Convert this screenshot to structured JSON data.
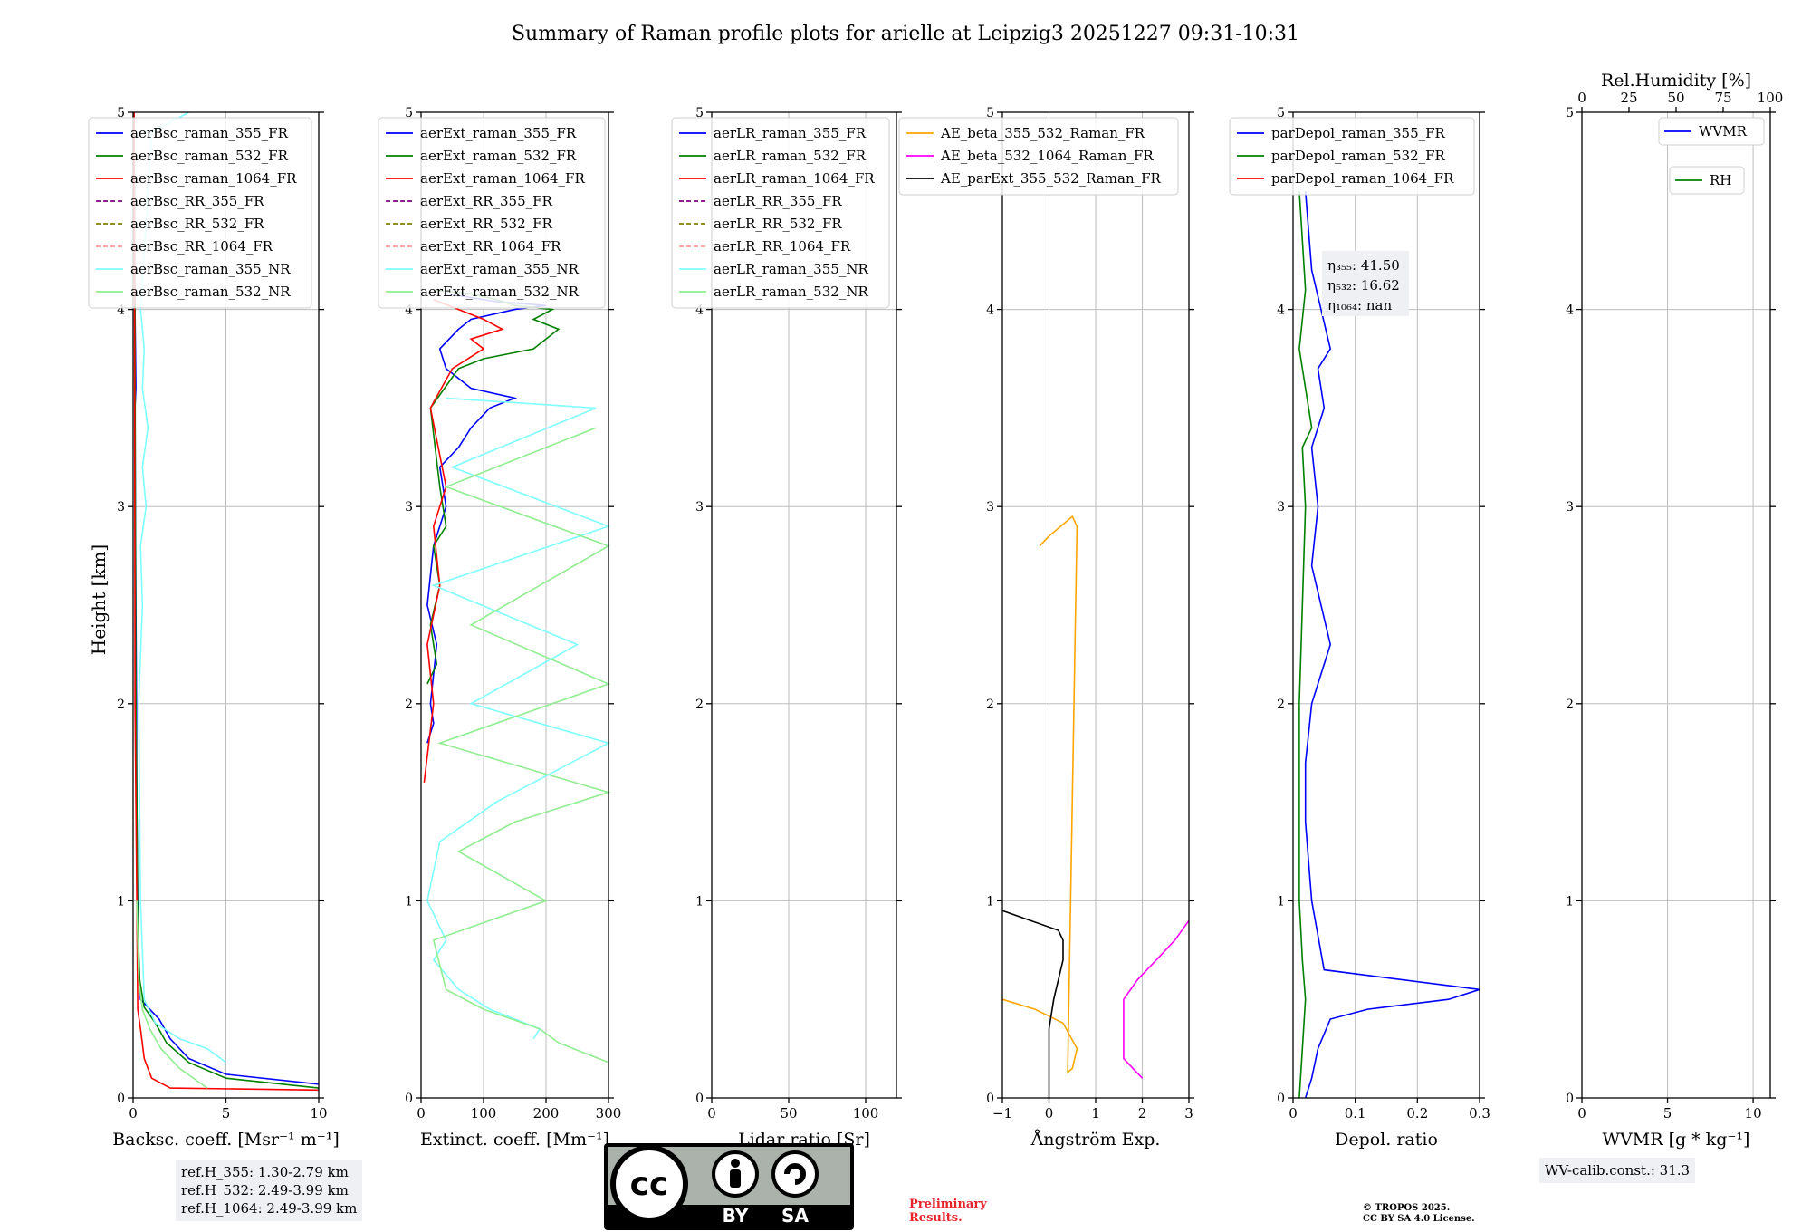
{
  "title": "Summary of Raman profile plots for arielle at Leipzig3 20251227 09:31-10:31",
  "ylabel": "Height [km]",
  "chart_data": [
    {
      "type": "line",
      "panel": "backscatter",
      "xlabel": "Backsc. coeff. [Msr⁻¹ m⁻¹]",
      "xlim": [
        0,
        10
      ],
      "ylim": [
        0,
        5
      ],
      "xticks": [
        0,
        5,
        10
      ],
      "yticks": [
        0,
        1,
        2,
        3,
        4,
        5
      ],
      "legend_position": "top",
      "series": [
        {
          "name": "aerBsc_raman_355_FR",
          "color": "#0000ff",
          "style": "solid",
          "x": [
            10.0,
            5.0,
            3.0,
            2.0,
            1.4,
            0.8,
            0.4,
            0.3,
            0.25,
            0.2,
            0.18,
            0.12,
            0.1,
            0.15,
            0.1,
            0.05
          ],
          "y": [
            0.07,
            0.12,
            0.2,
            0.3,
            0.4,
            0.46,
            0.5,
            0.7,
            1.0,
            1.5,
            2.0,
            3.0,
            3.5,
            3.6,
            4.0,
            5.0
          ]
        },
        {
          "name": "aerBsc_raman_532_FR",
          "color": "#008000",
          "style": "solid",
          "x": [
            10.0,
            5.0,
            3.0,
            1.8,
            1.2,
            0.6,
            0.35,
            0.25,
            0.2,
            0.15,
            0.12,
            0.1,
            0.05
          ],
          "y": [
            0.05,
            0.1,
            0.18,
            0.28,
            0.38,
            0.46,
            0.6,
            0.9,
            1.5,
            2.0,
            3.0,
            4.0,
            5.0
          ]
        },
        {
          "name": "aerBsc_raman_1064_FR",
          "color": "#ff0000",
          "style": "solid",
          "x": [
            10.0,
            2.0,
            1.0,
            0.6,
            0.4,
            0.25,
            0.2,
            0.1,
            0.08,
            0.05
          ],
          "y": [
            0.04,
            0.05,
            0.1,
            0.2,
            0.35,
            0.45,
            1.0,
            2.0,
            4.0,
            5.0
          ]
        },
        {
          "name": "aerBsc_RR_355_FR",
          "color": "#800080",
          "style": "dashed",
          "x": [],
          "y": []
        },
        {
          "name": "aerBsc_RR_532_FR",
          "color": "#808000",
          "style": "dashed",
          "x": [],
          "y": []
        },
        {
          "name": "aerBsc_RR_1064_FR",
          "color": "#ff9a9a",
          "style": "dashed",
          "x": [],
          "y": []
        },
        {
          "name": "aerBsc_raman_355_NR",
          "color": "#7fffff",
          "style": "solid",
          "x": [
            5.0,
            4.0,
            2.5,
            1.2,
            0.6,
            0.4,
            0.3,
            0.5,
            0.4,
            0.7,
            0.5,
            0.8,
            0.5,
            0.6,
            0.4,
            1.0,
            2.0,
            3.0
          ],
          "y": [
            0.18,
            0.25,
            0.3,
            0.38,
            0.5,
            1.0,
            2.0,
            2.5,
            2.8,
            3.0,
            3.2,
            3.4,
            3.6,
            3.8,
            4.0,
            4.9,
            4.95,
            5.0
          ]
        },
        {
          "name": "aerBsc_raman_532_NR",
          "color": "#90ee90",
          "style": "solid",
          "x": [
            4.0,
            2.5,
            1.5,
            0.9,
            0.5,
            0.3,
            0.2
          ],
          "y": [
            0.05,
            0.15,
            0.25,
            0.35,
            0.45,
            0.6,
            1.0
          ]
        }
      ]
    },
    {
      "type": "line",
      "panel": "extinction",
      "xlabel": "Extinct. coeff. [Mm⁻¹]",
      "xlim": [
        0,
        300
      ],
      "ylim": [
        0,
        5
      ],
      "xticks": [
        0,
        100,
        200,
        300
      ],
      "yticks": [
        0,
        1,
        2,
        3,
        4,
        5
      ],
      "legend_position": "top",
      "series": [
        {
          "name": "aerExt_raman_355_FR",
          "color": "#0000ff",
          "style": "solid",
          "x": [
            10,
            20,
            15,
            25,
            10,
            20,
            40,
            30,
            60,
            80,
            110,
            150,
            80,
            40,
            30,
            60,
            80,
            150,
            200,
            120,
            80,
            40
          ],
          "y": [
            1.8,
            1.9,
            2.0,
            2.3,
            2.5,
            2.8,
            3.0,
            3.2,
            3.3,
            3.4,
            3.5,
            3.55,
            3.6,
            3.7,
            3.8,
            3.9,
            3.95,
            4.0,
            4.02,
            4.04,
            4.06,
            4.08
          ]
        },
        {
          "name": "aerExt_raman_532_FR",
          "color": "#008000",
          "style": "solid",
          "x": [
            10,
            25,
            15,
            30,
            20,
            40,
            30,
            15,
            60,
            100,
            180,
            220,
            180,
            210,
            150,
            120,
            80,
            20
          ],
          "y": [
            2.1,
            2.2,
            2.4,
            2.6,
            2.8,
            2.9,
            3.1,
            3.5,
            3.7,
            3.75,
            3.8,
            3.9,
            3.95,
            4.0,
            4.02,
            4.05,
            4.08,
            4.1
          ]
        },
        {
          "name": "aerExt_raman_1064_FR",
          "color": "#ff0000",
          "style": "solid",
          "x": [
            5,
            20,
            10,
            30,
            20,
            40,
            15,
            50,
            100,
            80,
            130,
            100,
            60,
            20
          ],
          "y": [
            1.6,
            2.0,
            2.3,
            2.6,
            2.9,
            3.1,
            3.5,
            3.7,
            3.8,
            3.85,
            3.9,
            3.95,
            4.0,
            4.05
          ]
        },
        {
          "name": "aerExt_RR_355_FR",
          "color": "#800080",
          "style": "dashed",
          "x": [],
          "y": []
        },
        {
          "name": "aerExt_RR_532_FR",
          "color": "#808000",
          "style": "dashed",
          "x": [],
          "y": []
        },
        {
          "name": "aerExt_RR_1064_FR",
          "color": "#ff9a9a",
          "style": "dashed",
          "x": [],
          "y": []
        },
        {
          "name": "aerExt_raman_355_NR",
          "color": "#7fffff",
          "style": "solid",
          "x": [
            180,
            190,
            110,
            60,
            20,
            40,
            10,
            30,
            120,
            300,
            80,
            250,
            20,
            300,
            50,
            280,
            40
          ],
          "y": [
            0.3,
            0.35,
            0.45,
            0.55,
            0.7,
            0.8,
            1.0,
            1.3,
            1.5,
            1.8,
            2.0,
            2.3,
            2.6,
            2.9,
            3.2,
            3.5,
            3.55
          ]
        },
        {
          "name": "aerExt_raman_532_NR",
          "color": "#90ee90",
          "style": "solid",
          "x": [
            300,
            220,
            190,
            100,
            40,
            20,
            200,
            60,
            150,
            300,
            30,
            300,
            80,
            300,
            40,
            280
          ],
          "y": [
            0.18,
            0.28,
            0.35,
            0.45,
            0.55,
            0.8,
            1.0,
            1.25,
            1.4,
            1.55,
            1.8,
            2.1,
            2.4,
            2.8,
            3.1,
            3.4
          ]
        }
      ]
    },
    {
      "type": "line",
      "panel": "lidar_ratio",
      "xlabel": "Lidar ratio [Sr]",
      "xlim": [
        0,
        120
      ],
      "ylim": [
        0,
        5
      ],
      "xticks": [
        0,
        50,
        100
      ],
      "yticks": [
        0,
        1,
        2,
        3,
        4,
        5
      ],
      "legend_position": "top",
      "series": [
        {
          "name": "aerLR_raman_355_FR",
          "color": "#0000ff",
          "style": "solid",
          "x": [],
          "y": []
        },
        {
          "name": "aerLR_raman_532_FR",
          "color": "#008000",
          "style": "solid",
          "x": [],
          "y": []
        },
        {
          "name": "aerLR_raman_1064_FR",
          "color": "#ff0000",
          "style": "solid",
          "x": [],
          "y": []
        },
        {
          "name": "aerLR_RR_355_FR",
          "color": "#800080",
          "style": "dashed",
          "x": [],
          "y": []
        },
        {
          "name": "aerLR_RR_532_FR",
          "color": "#808000",
          "style": "dashed",
          "x": [],
          "y": []
        },
        {
          "name": "aerLR_RR_1064_FR",
          "color": "#ff9a9a",
          "style": "dashed",
          "x": [],
          "y": []
        },
        {
          "name": "aerLR_raman_355_NR",
          "color": "#7fffff",
          "style": "solid",
          "x": [],
          "y": []
        },
        {
          "name": "aerLR_raman_532_NR",
          "color": "#90ee90",
          "style": "solid",
          "x": [],
          "y": []
        }
      ]
    },
    {
      "type": "line",
      "panel": "angstrom",
      "xlabel": "Ångström Exp.",
      "xlim": [
        -1,
        3
      ],
      "ylim": [
        0,
        5
      ],
      "xticks": [
        -1,
        0,
        1,
        2,
        3
      ],
      "yticks": [
        0,
        1,
        2,
        3,
        4,
        5
      ],
      "legend_position": "top",
      "series": [
        {
          "name": "AE_beta_355_532_Raman_FR",
          "color": "#ffa500",
          "style": "solid",
          "x": [
            -1.0,
            -0.3,
            0.3,
            0.6,
            0.5,
            0.4,
            0.6,
            0.5,
            0.0,
            -0.2
          ],
          "y": [
            0.5,
            0.45,
            0.38,
            0.25,
            0.15,
            0.13,
            2.9,
            2.95,
            2.85,
            2.8
          ]
        },
        {
          "name": "AE_beta_532_1064_Raman_FR",
          "color": "#ff00ff",
          "style": "solid",
          "x": [
            2.0,
            1.6,
            1.6,
            1.6,
            1.9,
            2.3,
            2.7,
            3.0
          ],
          "y": [
            0.1,
            0.2,
            0.4,
            0.5,
            0.6,
            0.7,
            0.8,
            0.9
          ]
        },
        {
          "name": "AE_parExt_355_532_Raman_FR",
          "color": "#000000",
          "style": "solid",
          "x": [
            0.0,
            0.0,
            0.1,
            0.3,
            0.3,
            0.2,
            -1.0
          ],
          "y": [
            0.0,
            0.35,
            0.5,
            0.7,
            0.8,
            0.85,
            0.95
          ]
        }
      ]
    },
    {
      "type": "line",
      "panel": "depolarization",
      "xlabel": "Depol. ratio",
      "xlim": [
        0.0,
        0.3
      ],
      "ylim": [
        0,
        5
      ],
      "xticks": [
        0.0,
        0.1,
        0.2,
        0.3
      ],
      "yticks": [
        0,
        1,
        2,
        3,
        4,
        5
      ],
      "legend_position": "top",
      "series": [
        {
          "name": "parDepol_raman_355_FR",
          "color": "#0000ff",
          "style": "solid",
          "x": [
            0.02,
            0.03,
            0.04,
            0.06,
            0.12,
            0.25,
            0.3,
            0.05,
            0.03,
            0.02,
            0.02,
            0.025,
            0.03,
            0.06,
            0.03,
            0.04,
            0.03,
            0.05,
            0.04,
            0.06,
            0.03,
            0.02
          ],
          "y": [
            0.0,
            0.1,
            0.25,
            0.4,
            0.45,
            0.5,
            0.55,
            0.65,
            1.0,
            1.4,
            1.7,
            1.85,
            2.0,
            2.3,
            2.7,
            3.0,
            3.3,
            3.5,
            3.7,
            3.8,
            4.2,
            4.6
          ]
        },
        {
          "name": "parDepol_raman_532_FR",
          "color": "#008000",
          "style": "solid",
          "x": [
            0.01,
            0.02,
            0.015,
            0.01,
            0.01,
            0.02,
            0.015,
            0.03,
            0.01,
            0.02,
            0.01
          ],
          "y": [
            0.0,
            0.5,
            0.7,
            1.0,
            2.0,
            3.0,
            3.3,
            3.4,
            3.8,
            4.1,
            4.6
          ]
        },
        {
          "name": "parDepol_raman_1064_FR",
          "color": "#ff0000",
          "style": "solid",
          "x": [],
          "y": []
        }
      ],
      "annotation": [
        "η₃₅₅: 41.50",
        "η₅₃₂: 16.62",
        "η₁₀₆₄: nan"
      ]
    },
    {
      "type": "line",
      "panel": "water_vapor",
      "xlabel": "WVMR [g * kg⁻¹]",
      "xlabel_top": "Rel.Humidity [%]",
      "xlim": [
        0,
        11
      ],
      "xlim_top": [
        0,
        100
      ],
      "ylim": [
        0,
        5
      ],
      "xticks": [
        0,
        5,
        10
      ],
      "xticks_top": [
        0,
        25,
        50,
        75,
        100
      ],
      "yticks": [
        0,
        1,
        2,
        3,
        4,
        5
      ],
      "series": [
        {
          "name": "WVMR",
          "color": "#0000ff",
          "style": "solid",
          "x": [],
          "y": []
        },
        {
          "name": "RH",
          "color": "#008000",
          "style": "solid",
          "x": [],
          "y": []
        }
      ]
    }
  ],
  "reference_heights": [
    "ref.H_355: 1.30-2.79 km",
    "ref.H_532: 2.49-3.99 km",
    "ref.H_1064: 2.49-3.99 km"
  ],
  "wv_calib": "WV-calib.const.: 31.3",
  "license_badge": {
    "top": "cc",
    "by": "BY",
    "sa": "SA"
  },
  "preliminary": [
    "Preliminary",
    "Results."
  ],
  "copyright": [
    "© TROPOS 2025.",
    "CC BY SA 4.0 License."
  ]
}
